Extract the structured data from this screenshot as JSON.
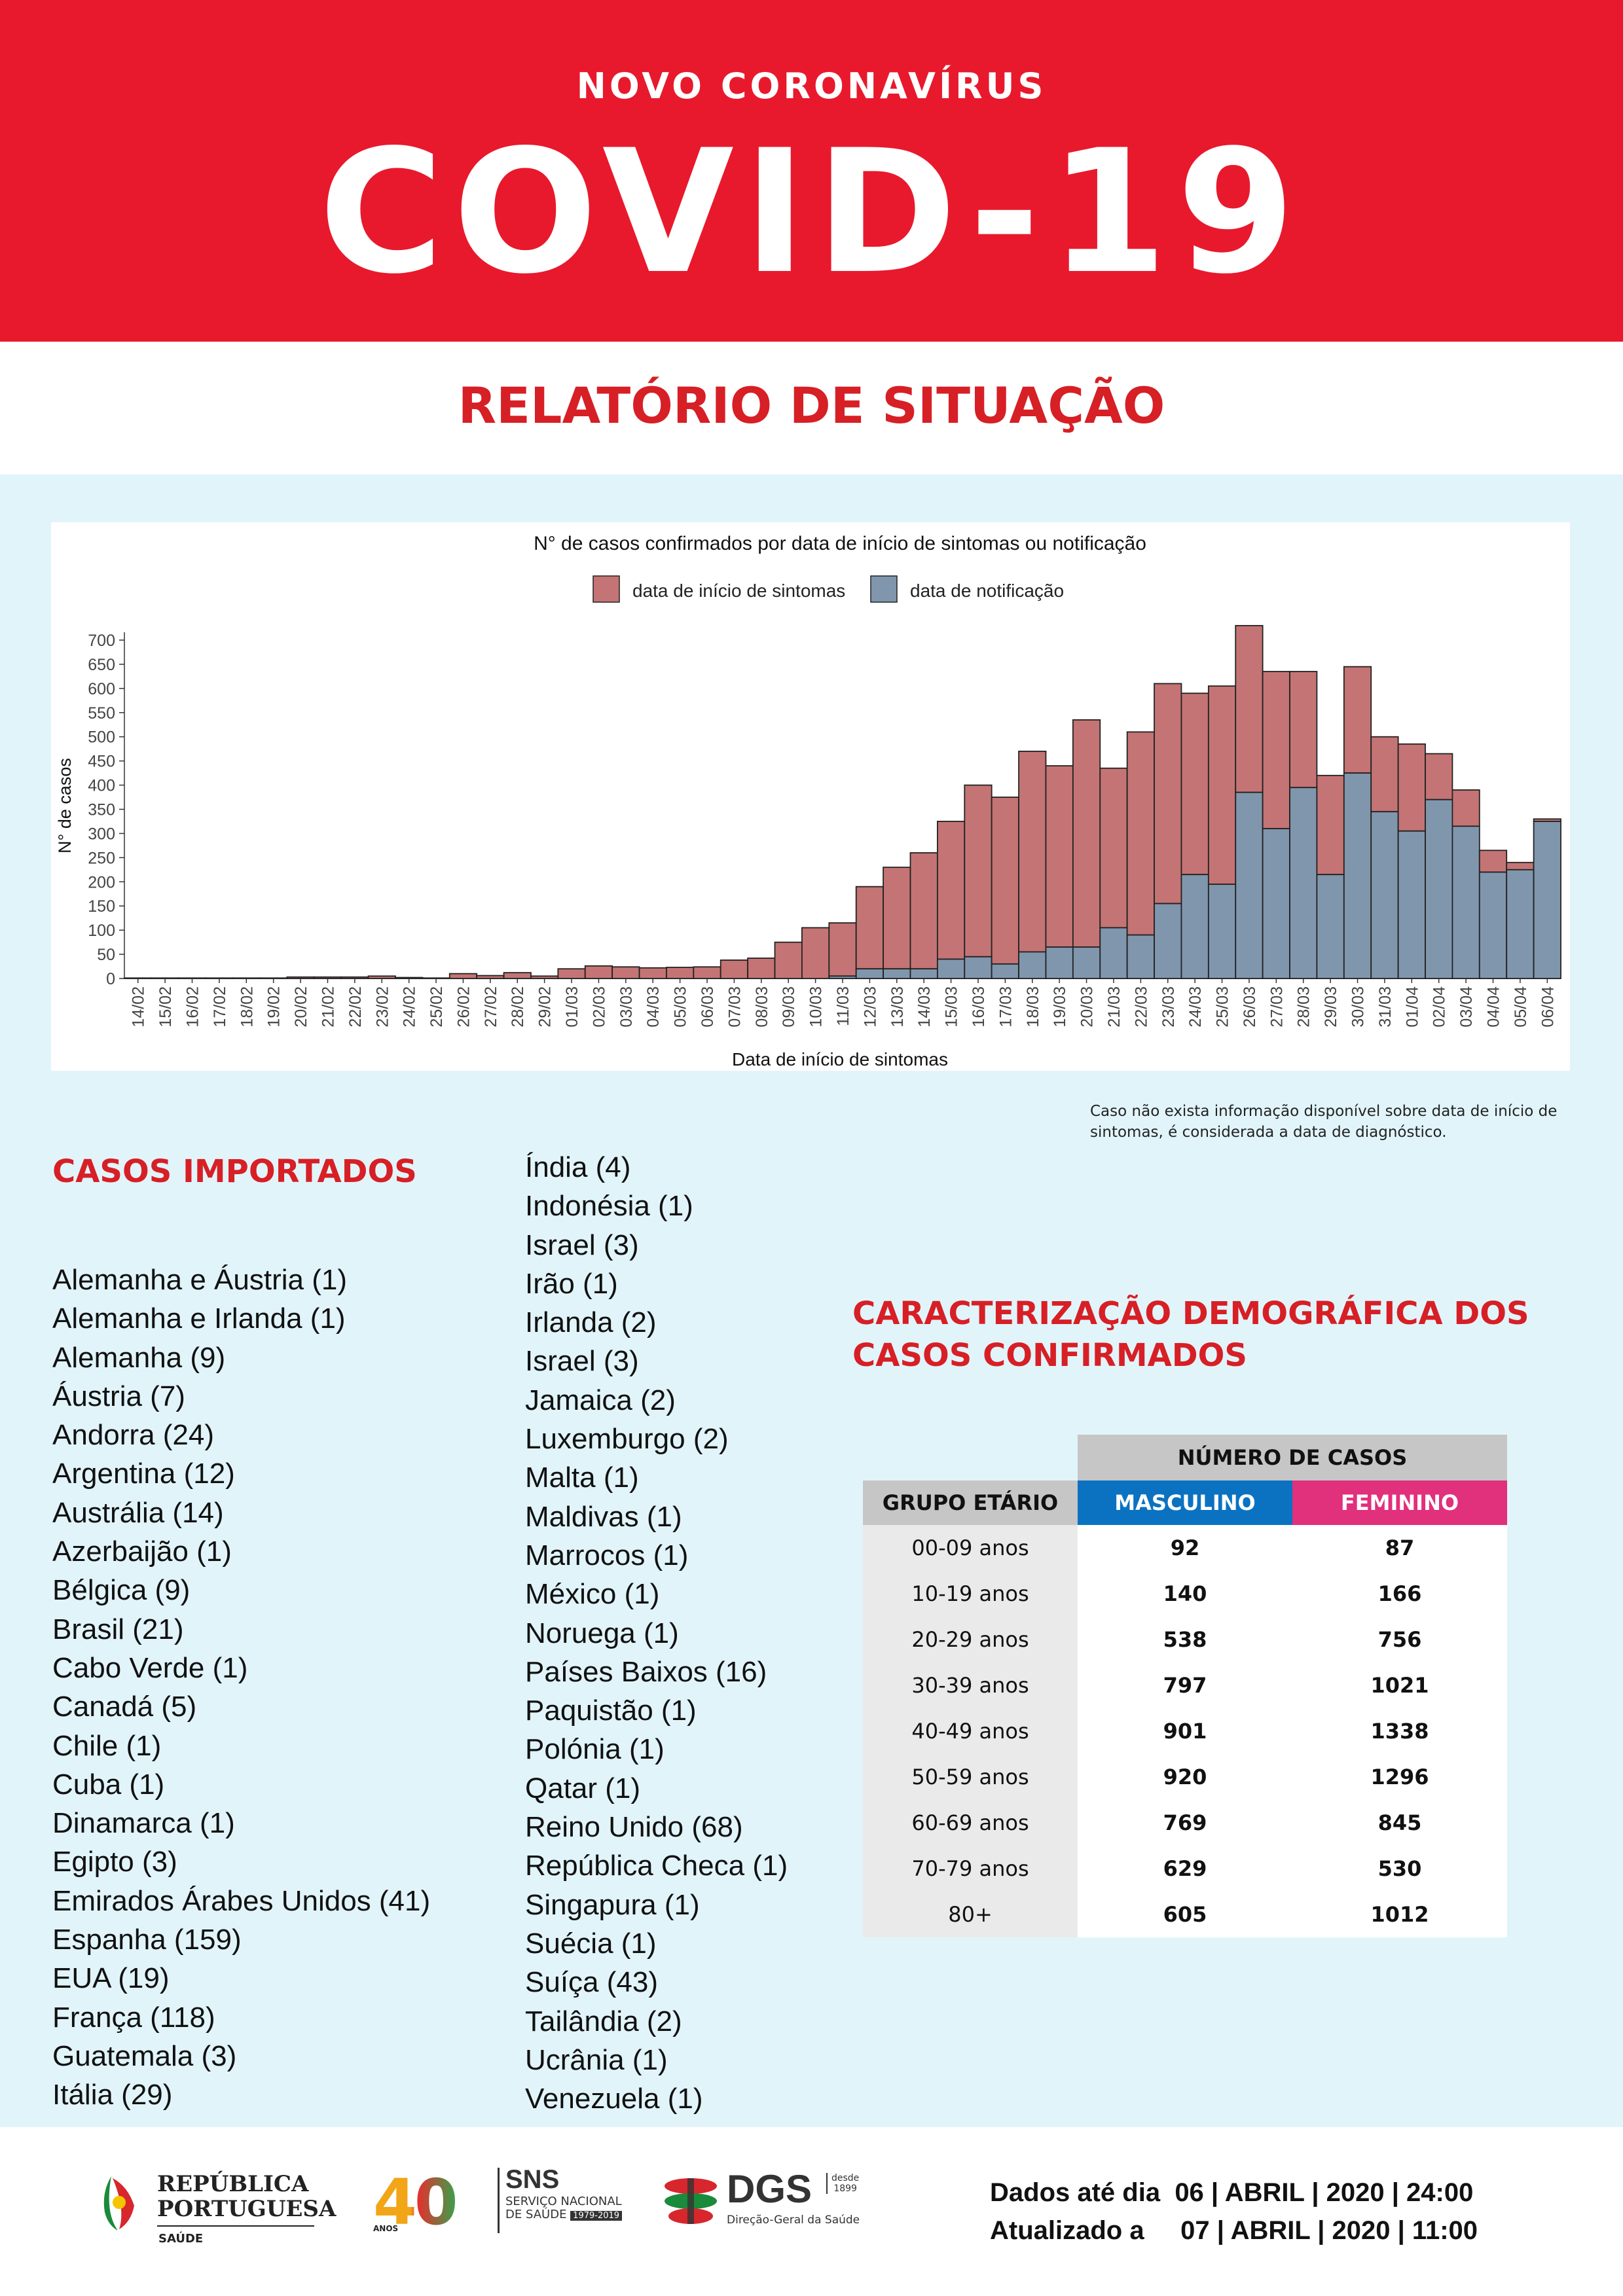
{
  "header": {
    "subtitle": "NOVO CORONAVÍRUS",
    "title": "COVID-19"
  },
  "report_title": "RELATÓRIO DE SITUAÇÃO",
  "chart_data": {
    "type": "bar",
    "title": "N° de casos confirmados por data de início de sintomas ou notificação",
    "xlabel": "Data de início de sintomas",
    "ylabel": "N° de casos",
    "ylim": [
      0,
      700
    ],
    "yticks": [
      0,
      50,
      100,
      150,
      200,
      250,
      300,
      350,
      400,
      450,
      500,
      550,
      600,
      650,
      700
    ],
    "legend_position": "top",
    "stacked": true,
    "categories": [
      "14/02",
      "15/02",
      "16/02",
      "17/02",
      "18/02",
      "19/02",
      "20/02",
      "21/02",
      "22/02",
      "23/02",
      "24/02",
      "25/02",
      "26/02",
      "27/02",
      "28/02",
      "29/02",
      "01/03",
      "02/03",
      "03/03",
      "04/03",
      "05/03",
      "06/03",
      "07/03",
      "08/03",
      "09/03",
      "10/03",
      "11/03",
      "12/03",
      "13/03",
      "14/03",
      "15/03",
      "16/03",
      "17/03",
      "18/03",
      "19/03",
      "20/03",
      "21/03",
      "22/03",
      "23/03",
      "24/03",
      "25/03",
      "26/03",
      "27/03",
      "28/03",
      "29/03",
      "30/03",
      "31/03",
      "01/04",
      "02/04",
      "03/04",
      "04/04",
      "05/04",
      "06/04"
    ],
    "series": [
      {
        "name": "data de início de sintomas",
        "color": "#c47474",
        "values": [
          1,
          1,
          1,
          1,
          1,
          1,
          3,
          3,
          3,
          5,
          2,
          1,
          10,
          6,
          12,
          5,
          20,
          26,
          24,
          22,
          23,
          24,
          38,
          42,
          75,
          105,
          110,
          170,
          210,
          240,
          285,
          355,
          345,
          415,
          375,
          470,
          330,
          420,
          455,
          375,
          410,
          345,
          325,
          240,
          205,
          220,
          155,
          180,
          95,
          75,
          45,
          15,
          5
        ]
      },
      {
        "name": "data de notificação",
        "color": "#8096ad",
        "values": [
          0,
          0,
          0,
          0,
          0,
          0,
          0,
          0,
          0,
          0,
          0,
          0,
          0,
          0,
          0,
          0,
          0,
          0,
          0,
          0,
          0,
          0,
          0,
          0,
          0,
          0,
          5,
          20,
          20,
          20,
          40,
          45,
          30,
          55,
          65,
          65,
          105,
          90,
          155,
          215,
          195,
          385,
          310,
          395,
          215,
          425,
          345,
          305,
          370,
          315,
          220,
          225,
          325
        ]
      }
    ]
  },
  "chart_note": "Caso não exista informação disponível sobre data de início de sintomas, é considerada a data de diagnóstico.",
  "imported": {
    "title": "CASOS IMPORTADOS",
    "col1": [
      "Alemanha e Áustria (1)",
      "Alemanha e Irlanda (1)",
      "Alemanha (9)",
      "Áustria (7)",
      "Andorra (24)",
      "Argentina (12)",
      "Austrália (14)",
      "Azerbaijão (1)",
      "Bélgica (9)",
      "Brasil (21)",
      "Cabo Verde (1)",
      "Canadá (5)",
      "Chile (1)",
      "Cuba (1)",
      "Dinamarca (1)",
      "Egipto (3)",
      "Emirados Árabes Unidos (41)",
      "Espanha (159)",
      "EUA (19)",
      "França (118)",
      "Guatemala (3)",
      "Itália (29)"
    ],
    "col2": [
      "Índia (4)",
      "Indonésia (1)",
      "Israel (3)",
      "Irão (1)",
      "Irlanda (2)",
      "Israel (3)",
      "Jamaica (2)",
      "Luxemburgo (2)",
      "Malta (1)",
      "Maldivas (1)",
      "Marrocos (1)",
      "México (1)",
      "Noruega (1)",
      "Países Baixos (16)",
      "Paquistão (1)",
      "Polónia (1)",
      "Qatar (1)",
      "Reino Unido (68)",
      "República Checa (1)",
      "Singapura (1)",
      "Suécia (1)",
      "Suíça (43)",
      "Tailândia (2)",
      "Ucrânia (1)",
      "Venezuela (1)"
    ]
  },
  "demographics": {
    "title_line1": "CARACTERIZAÇÃO DEMOGRÁFICA DOS",
    "title_line2": "CASOS CONFIRMADOS",
    "header_cases": "NÚMERO DE CASOS",
    "header_age": "GRUPO ETÁRIO",
    "header_male": "MASCULINO",
    "header_female": "FEMININO",
    "male_color": "#0b72c2",
    "female_color": "#e1307c",
    "rows": [
      {
        "age": "00-09 anos",
        "male": "92",
        "female": "87"
      },
      {
        "age": "10-19 anos",
        "male": "140",
        "female": "166"
      },
      {
        "age": "20-29 anos",
        "male": "538",
        "female": "756"
      },
      {
        "age": "30-39 anos",
        "male": "797",
        "female": "1021"
      },
      {
        "age": "40-49 anos",
        "male": "901",
        "female": "1338"
      },
      {
        "age": "50-59 anos",
        "male": "920",
        "female": "1296"
      },
      {
        "age": "60-69 anos",
        "male": "769",
        "female": "845"
      },
      {
        "age": "70-79 anos",
        "male": "629",
        "female": "530"
      },
      {
        "age": "80+",
        "male": "605",
        "female": "1012"
      }
    ]
  },
  "footer": {
    "republica_line1": "REPÚBLICA",
    "republica_line2": "PORTUGUESA",
    "republica_sub": "SAÚDE",
    "forty": "40",
    "forty_sub": "ANOS",
    "sns_title": "SNS",
    "sns_line1": "SERVIÇO NACIONAL",
    "sns_line2": "DE SAÚDE",
    "sns_years": "1979-2019",
    "dgs_title": "DGS",
    "dgs_desde": "desde",
    "dgs_year": "1899",
    "dgs_sub": "Direção-Geral da Saúde",
    "data_label": "Dados até dia",
    "data_value": "06 | ABRIL | 2020 | 24:00",
    "update_label": "Atualizado a",
    "update_value": "07 | ABRIL | 2020 | 11:00"
  }
}
